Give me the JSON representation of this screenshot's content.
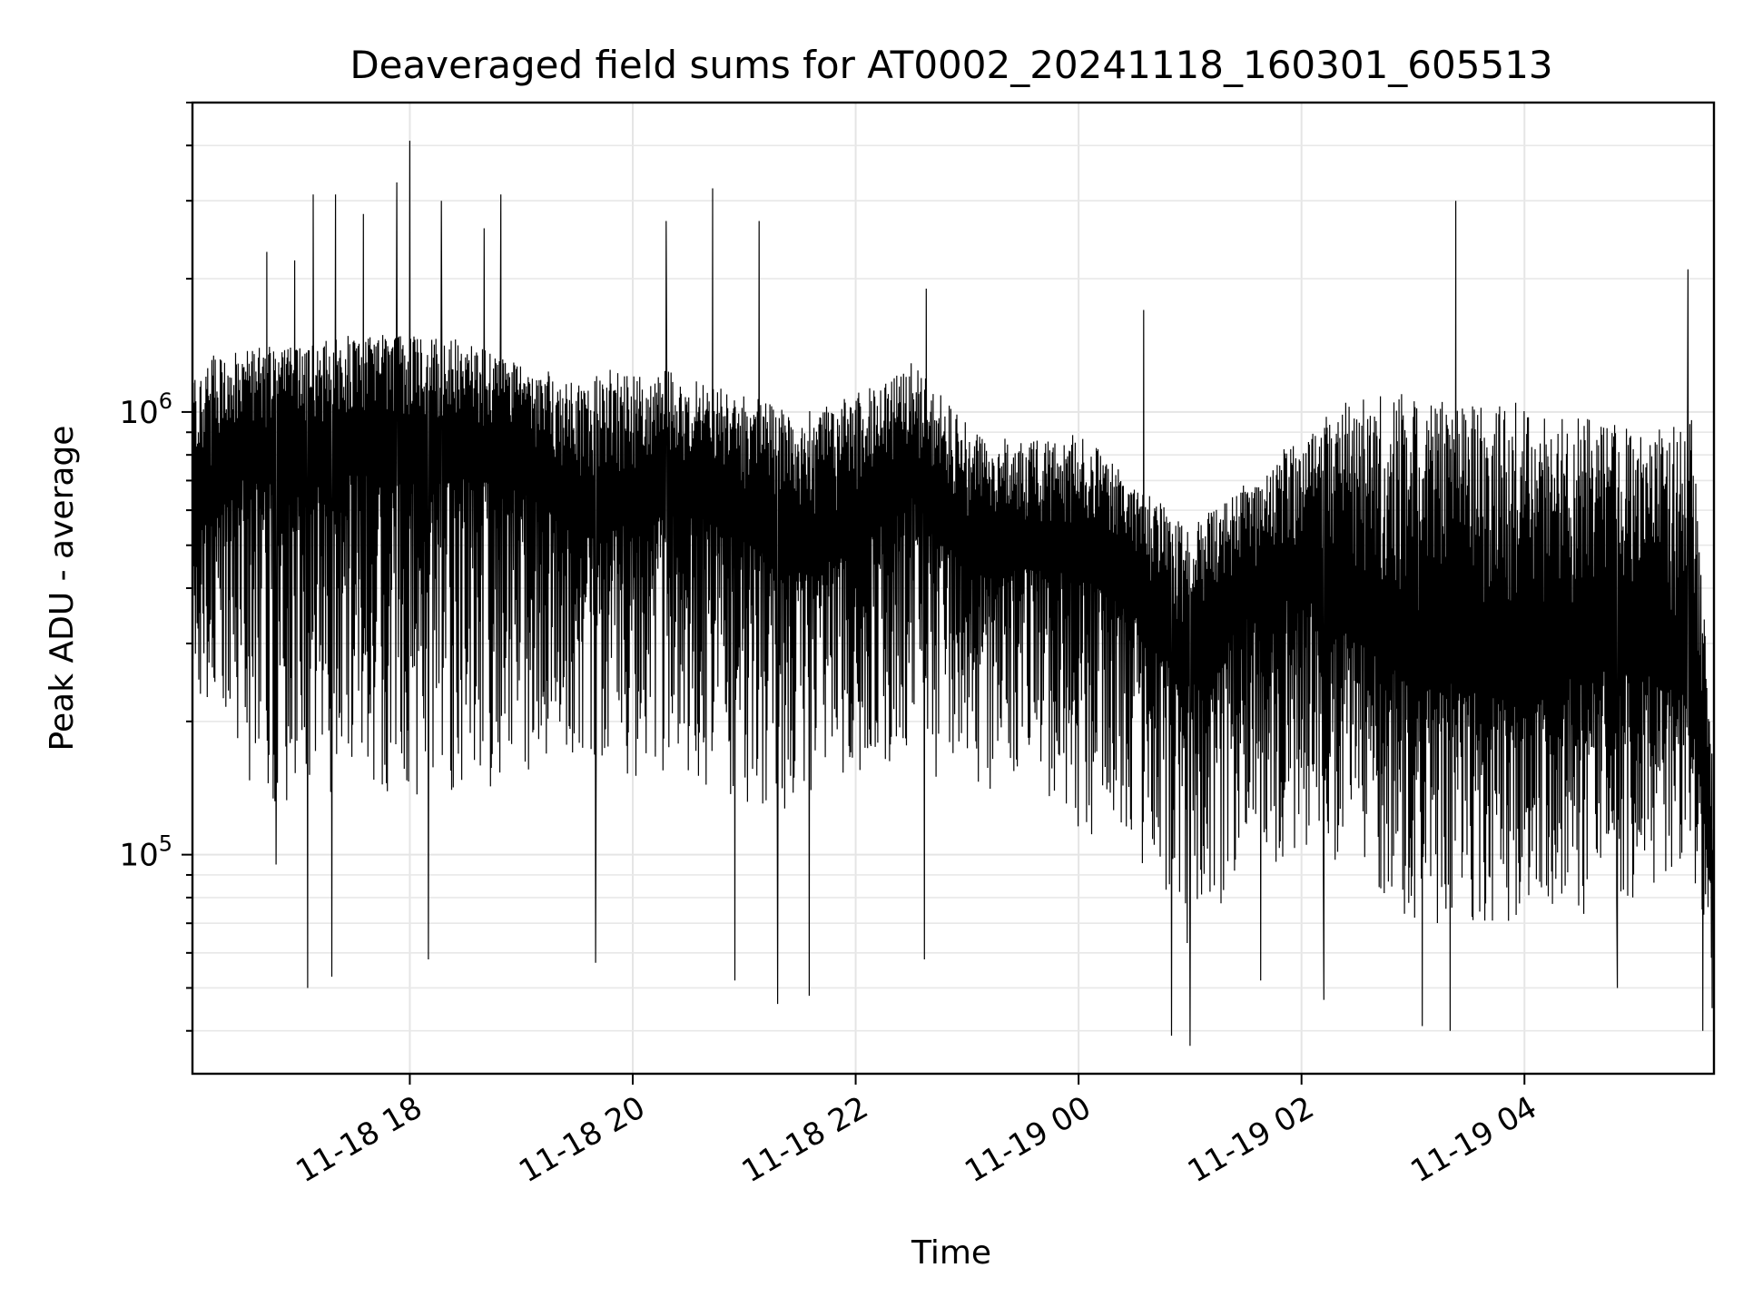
{
  "chart_data": {
    "type": "line",
    "title": "Deaveraged field sums for AT0002_20241118_160301_605513",
    "xlabel": "Time",
    "ylabel": "Peak ADU - average",
    "yscale": "log",
    "ylim": [
      32000,
      5000000
    ],
    "xlim": [
      "2024-11-18 16:03",
      "2024-11-19 05:42"
    ],
    "grid": true,
    "x_ticks": [
      {
        "value": "2024-11-18 18:00",
        "label": "11-18 18"
      },
      {
        "value": "2024-11-18 20:00",
        "label": "11-18 20"
      },
      {
        "value": "2024-11-18 22:00",
        "label": "11-18 22"
      },
      {
        "value": "2024-11-19 00:00",
        "label": "11-19 00"
      },
      {
        "value": "2024-11-19 02:00",
        "label": "11-19 02"
      },
      {
        "value": "2024-11-19 04:00",
        "label": "11-19 04"
      }
    ],
    "y_ticks": [
      {
        "value": 100000,
        "base": "10",
        "exp": "5"
      },
      {
        "value": 1000000,
        "base": "10",
        "exp": "6"
      }
    ],
    "series": [
      {
        "color": "#000000",
        "x": [
          "2024-11-18 16:03",
          "2024-11-18 16:30",
          "2024-11-18 17:00",
          "2024-11-18 17:30",
          "2024-11-18 18:00",
          "2024-11-18 18:30",
          "2024-11-18 19:00",
          "2024-11-18 19:30",
          "2024-11-18 20:00",
          "2024-11-18 20:30",
          "2024-11-18 21:00",
          "2024-11-18 21:30",
          "2024-11-18 22:00",
          "2024-11-18 22:30",
          "2024-11-18 23:00",
          "2024-11-18 23:30",
          "2024-11-19 00:00",
          "2024-11-19 00:30",
          "2024-11-19 01:00",
          "2024-11-19 01:30",
          "2024-11-19 02:00",
          "2024-11-19 02:30",
          "2024-11-19 03:00",
          "2024-11-19 03:30",
          "2024-11-19 04:00",
          "2024-11-19 04:30",
          "2024-11-19 05:00",
          "2024-11-19 05:30",
          "2024-11-19 05:42"
        ],
        "median": [
          550000,
          850000,
          800000,
          900000,
          850000,
          850000,
          800000,
          600000,
          650000,
          700000,
          600000,
          500000,
          550000,
          750000,
          500000,
          500000,
          500000,
          400000,
          280000,
          400000,
          450000,
          350000,
          280000,
          280000,
          250000,
          300000,
          300000,
          250000,
          80000
        ],
        "upper": [
          1300000,
          1450000,
          1400000,
          1500000,
          1500000,
          1450000,
          1300000,
          1200000,
          1300000,
          1200000,
          1100000,
          1000000,
          1100000,
          1300000,
          950000,
          850000,
          900000,
          700000,
          550000,
          700000,
          900000,
          1100000,
          1100000,
          1050000,
          1050000,
          1000000,
          900000,
          1000000,
          150000
        ],
        "lower": [
          250000,
          150000,
          120000,
          150000,
          120000,
          130000,
          150000,
          170000,
          150000,
          150000,
          120000,
          120000,
          150000,
          160000,
          130000,
          150000,
          110000,
          100000,
          60000,
          90000,
          100000,
          90000,
          70000,
          70000,
          70000,
          70000,
          80000,
          90000,
          50000
        ],
        "spikes_high": [
          {
            "t": "2024-11-18 16:43",
            "v": 2300000
          },
          {
            "t": "2024-11-18 16:58",
            "v": 2200000
          },
          {
            "t": "2024-11-18 17:08",
            "v": 3100000
          },
          {
            "t": "2024-11-18 17:20",
            "v": 3100000
          },
          {
            "t": "2024-11-18 17:35",
            "v": 2800000
          },
          {
            "t": "2024-11-18 17:53",
            "v": 3300000
          },
          {
            "t": "2024-11-18 18:00",
            "v": 4100000
          },
          {
            "t": "2024-11-18 18:17",
            "v": 3000000
          },
          {
            "t": "2024-11-18 18:40",
            "v": 2600000
          },
          {
            "t": "2024-11-18 18:49",
            "v": 3100000
          },
          {
            "t": "2024-11-18 20:18",
            "v": 2700000
          },
          {
            "t": "2024-11-18 20:43",
            "v": 3200000
          },
          {
            "t": "2024-11-18 21:08",
            "v": 2700000
          },
          {
            "t": "2024-11-18 22:38",
            "v": 1900000
          },
          {
            "t": "2024-11-19 00:35",
            "v": 1700000
          },
          {
            "t": "2024-11-19 03:23",
            "v": 3000000
          },
          {
            "t": "2024-11-19 05:28",
            "v": 2100000
          }
        ],
        "spikes_low": [
          {
            "t": "2024-11-18 16:48",
            "v": 95000
          },
          {
            "t": "2024-11-18 17:05",
            "v": 50000
          },
          {
            "t": "2024-11-18 17:18",
            "v": 53000
          },
          {
            "t": "2024-11-18 18:10",
            "v": 58000
          },
          {
            "t": "2024-11-18 19:40",
            "v": 57000
          },
          {
            "t": "2024-11-18 20:55",
            "v": 52000
          },
          {
            "t": "2024-11-18 21:18",
            "v": 46000
          },
          {
            "t": "2024-11-18 21:35",
            "v": 48000
          },
          {
            "t": "2024-11-18 22:37",
            "v": 58000
          },
          {
            "t": "2024-11-19 00:50",
            "v": 39000
          },
          {
            "t": "2024-11-19 01:00",
            "v": 37000
          },
          {
            "t": "2024-11-19 01:38",
            "v": 52000
          },
          {
            "t": "2024-11-19 02:12",
            "v": 47000
          },
          {
            "t": "2024-11-19 03:05",
            "v": 41000
          },
          {
            "t": "2024-11-19 03:20",
            "v": 40000
          },
          {
            "t": "2024-11-19 04:50",
            "v": 50000
          },
          {
            "t": "2024-11-19 05:36",
            "v": 40000
          },
          {
            "t": "2024-11-19 05:41",
            "v": 45000
          }
        ]
      }
    ]
  }
}
